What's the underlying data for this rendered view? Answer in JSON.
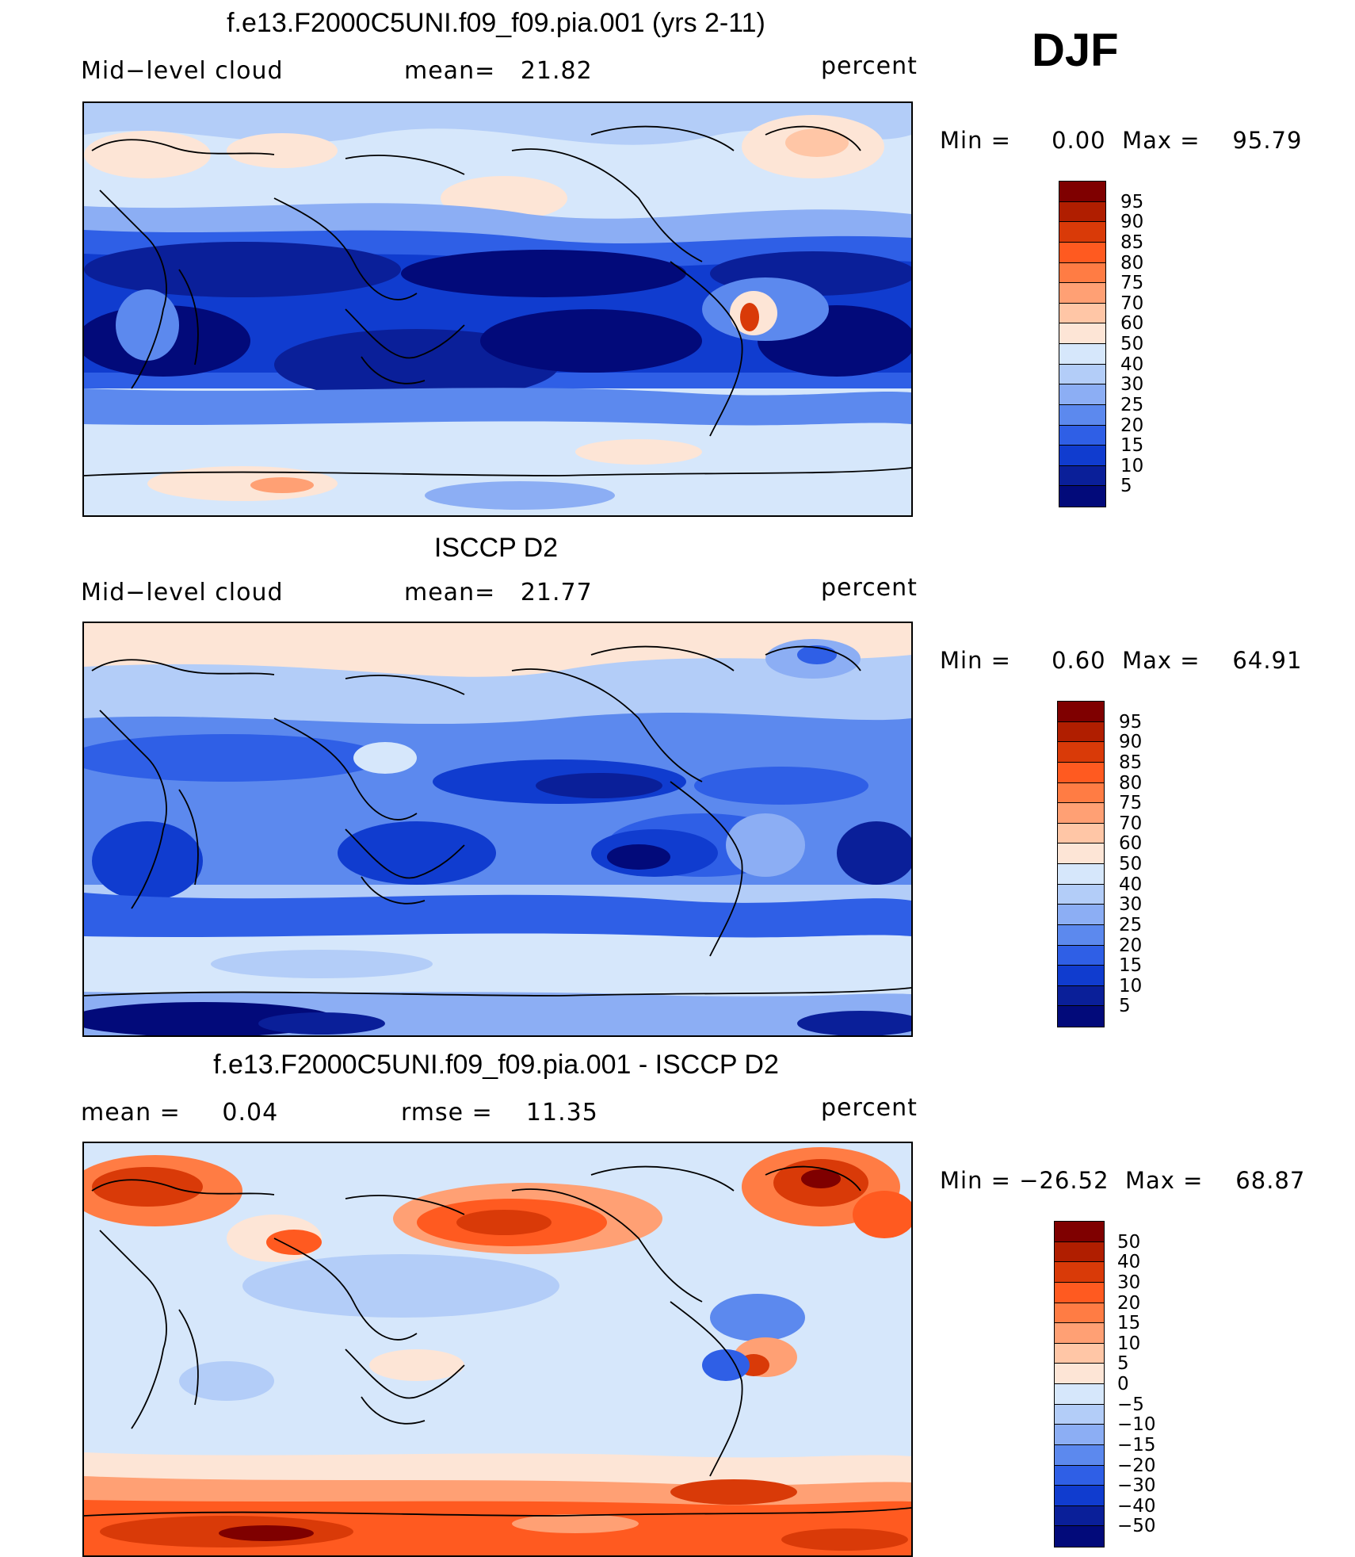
{
  "season": "DJF",
  "panels": [
    {
      "id": "model",
      "title": "f.e13.F2000C5UNI.f09_f09.pia.001 (yrs 2-11)",
      "left_label": "Mid−level cloud",
      "mid_label": "mean=   21.82",
      "units": "percent",
      "minmax": "Min =     0.00  Max =    95.79",
      "legend": [
        "95",
        "90",
        "85",
        "80",
        "75",
        "70",
        "60",
        "50",
        "40",
        "30",
        "25",
        "20",
        "15",
        "10",
        "5"
      ],
      "legend_colors": [
        "#7f0000",
        "#b01e00",
        "#d93a08",
        "#ff5a20",
        "#ff7c44",
        "#ffa074",
        "#ffc6a6",
        "#fde5d6",
        "#d6e7fb",
        "#b3cdf8",
        "#8caef4",
        "#5c89ee",
        "#2f5fe6",
        "#103ccf",
        "#0a1f99",
        "#020a7a"
      ]
    },
    {
      "id": "obs",
      "title": "ISCCP D2",
      "left_label": "Mid−level cloud",
      "mid_label": "mean=   21.77",
      "units": "percent",
      "minmax": "Min =     0.60  Max =    64.91",
      "legend": [
        "95",
        "90",
        "85",
        "80",
        "75",
        "70",
        "60",
        "50",
        "40",
        "30",
        "25",
        "20",
        "15",
        "10",
        "5"
      ],
      "legend_colors": [
        "#7f0000",
        "#b01e00",
        "#d93a08",
        "#ff5a20",
        "#ff7c44",
        "#ffa074",
        "#ffc6a6",
        "#fde5d6",
        "#d6e7fb",
        "#b3cdf8",
        "#8caef4",
        "#5c89ee",
        "#2f5fe6",
        "#103ccf",
        "#0a1f99",
        "#020a7a"
      ]
    },
    {
      "id": "diff",
      "title": "f.e13.F2000C5UNI.f09_f09.pia.001 - ISCCP D2",
      "left_label": "mean =     0.04",
      "mid_label": "rmse =    11.35",
      "units": "percent",
      "minmax": "Min = −26.52  Max =    68.87",
      "legend": [
        "50",
        "40",
        "30",
        "20",
        "15",
        "10",
        "5",
        "0",
        "−5",
        "−10",
        "−15",
        "−20",
        "−30",
        "−40",
        "−50"
      ],
      "legend_colors": [
        "#7f0000",
        "#b01e00",
        "#d93a08",
        "#ff5a20",
        "#ff7c44",
        "#ffa074",
        "#ffc6a6",
        "#fde5d6",
        "#d6e7fb",
        "#b3cdf8",
        "#8caef4",
        "#5c89ee",
        "#2f5fe6",
        "#103ccf",
        "#0a1f99",
        "#020a7a"
      ]
    }
  ]
}
